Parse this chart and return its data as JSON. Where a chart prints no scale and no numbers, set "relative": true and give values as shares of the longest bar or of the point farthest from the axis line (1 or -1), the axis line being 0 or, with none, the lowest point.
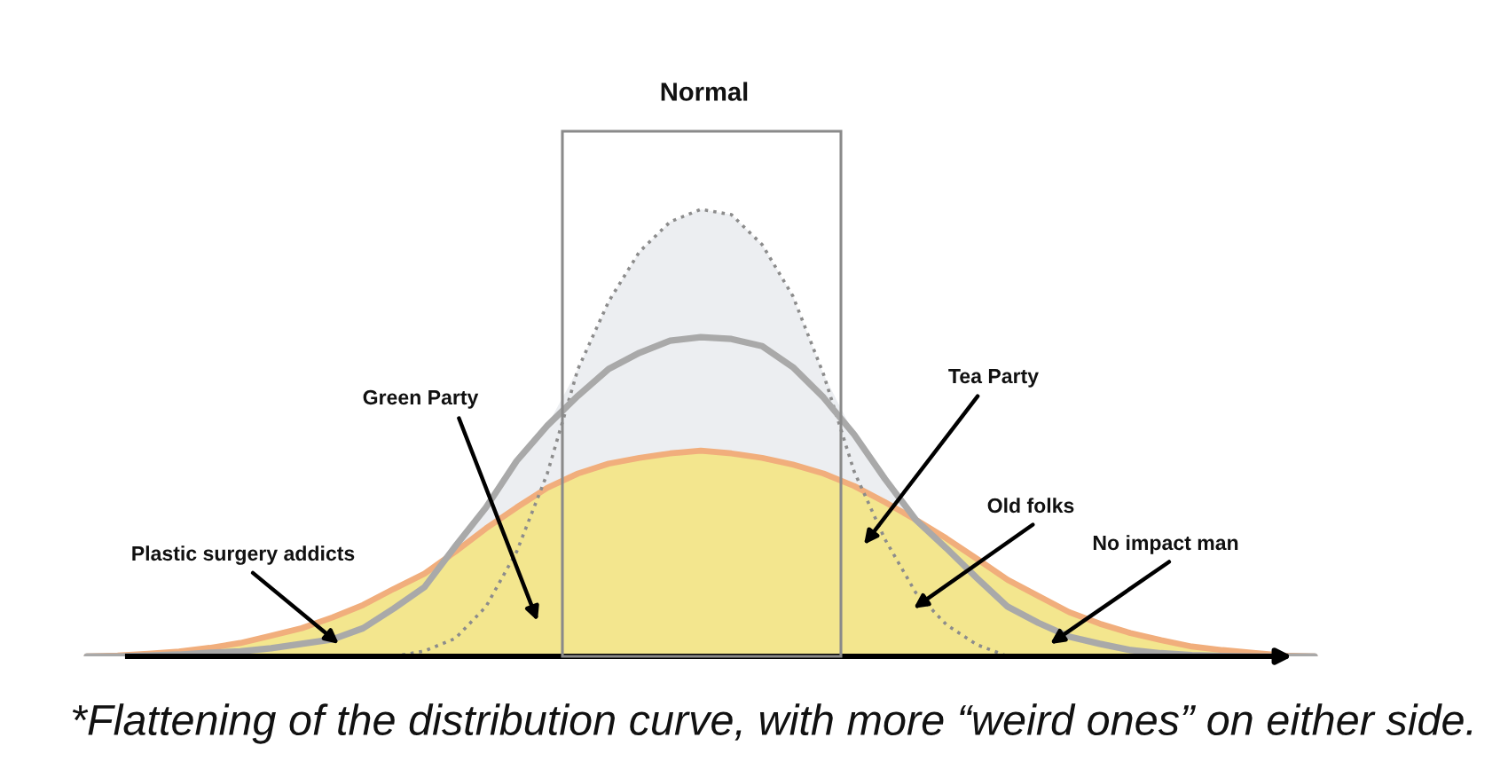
{
  "chart_data": {
    "type": "area",
    "relative": true,
    "categories": [
      null,
      null,
      null,
      null,
      null,
      null,
      null,
      null,
      null,
      null,
      null,
      null,
      null,
      null,
      null,
      null,
      null,
      null,
      null,
      null,
      null,
      null,
      null,
      null,
      null,
      null,
      null,
      null,
      null,
      null,
      null,
      null,
      null,
      null,
      null,
      null,
      null,
      null,
      null,
      null,
      null
    ],
    "series": [
      {
        "color": "#eceef1",
        "values": [
          0,
          0,
          0.002,
          0.004,
          0.008,
          0.011,
          0.018,
          0.028,
          0.038,
          0.063,
          0.107,
          0.155,
          0.246,
          0.333,
          0.437,
          0.516,
          0.643,
          0.794,
          0.905,
          0.972,
          1,
          0.988,
          0.921,
          0.806,
          0.631,
          0.496,
          0.397,
          0.306,
          0.242,
          0.175,
          0.111,
          0.075,
          0.044,
          0.028,
          0.014,
          0.007,
          0.003,
          0.001,
          0,
          0,
          0
        ]
      },
      {
        "color": "#f3e68e",
        "values": [
          0,
          0.002,
          0.006,
          0.011,
          0.019,
          0.03,
          0.046,
          0.063,
          0.087,
          0.115,
          0.151,
          0.185,
          0.234,
          0.286,
          0.333,
          0.377,
          0.409,
          0.431,
          0.444,
          0.454,
          0.46,
          0.454,
          0.444,
          0.429,
          0.409,
          0.381,
          0.345,
          0.306,
          0.264,
          0.218,
          0.171,
          0.135,
          0.099,
          0.073,
          0.052,
          0.036,
          0.022,
          0.014,
          0.008,
          0.002,
          0
        ]
      },
      {
        "type": "line",
        "color": "#8c8c8c",
        "line_style": "dotted",
        "values": [
          null,
          null,
          null,
          null,
          null,
          null,
          null,
          null,
          null,
          null,
          0,
          0.012,
          0.04,
          0.111,
          0.234,
          0.409,
          0.643,
          0.794,
          0.905,
          0.972,
          1,
          0.988,
          0.921,
          0.806,
          0.631,
          0.413,
          0.262,
          0.143,
          0.071,
          0.026,
          0,
          null,
          null,
          null,
          null,
          null,
          null,
          null,
          null,
          null,
          null
        ]
      },
      {
        "type": "line",
        "color": "#a9a9a9",
        "values": [
          0,
          0,
          0.002,
          0.004,
          0.008,
          0.011,
          0.018,
          0.028,
          0.038,
          0.063,
          0.107,
          0.155,
          0.246,
          0.333,
          0.437,
          0.516,
          0.583,
          0.643,
          0.679,
          0.706,
          0.714,
          0.71,
          0.694,
          0.647,
          0.579,
          0.496,
          0.397,
          0.306,
          0.242,
          0.175,
          0.111,
          0.075,
          0.044,
          0.028,
          0.014,
          0.007,
          0.003,
          0.001,
          0,
          0,
          0
        ]
      }
    ],
    "annotations": [
      "Normal",
      "Plastic surgery addicts",
      "Green Party",
      "Tea Party",
      "Old folks",
      "No impact man",
      "*Flattening of the distribution curve, with more “weird ones” on either side."
    ]
  }
}
